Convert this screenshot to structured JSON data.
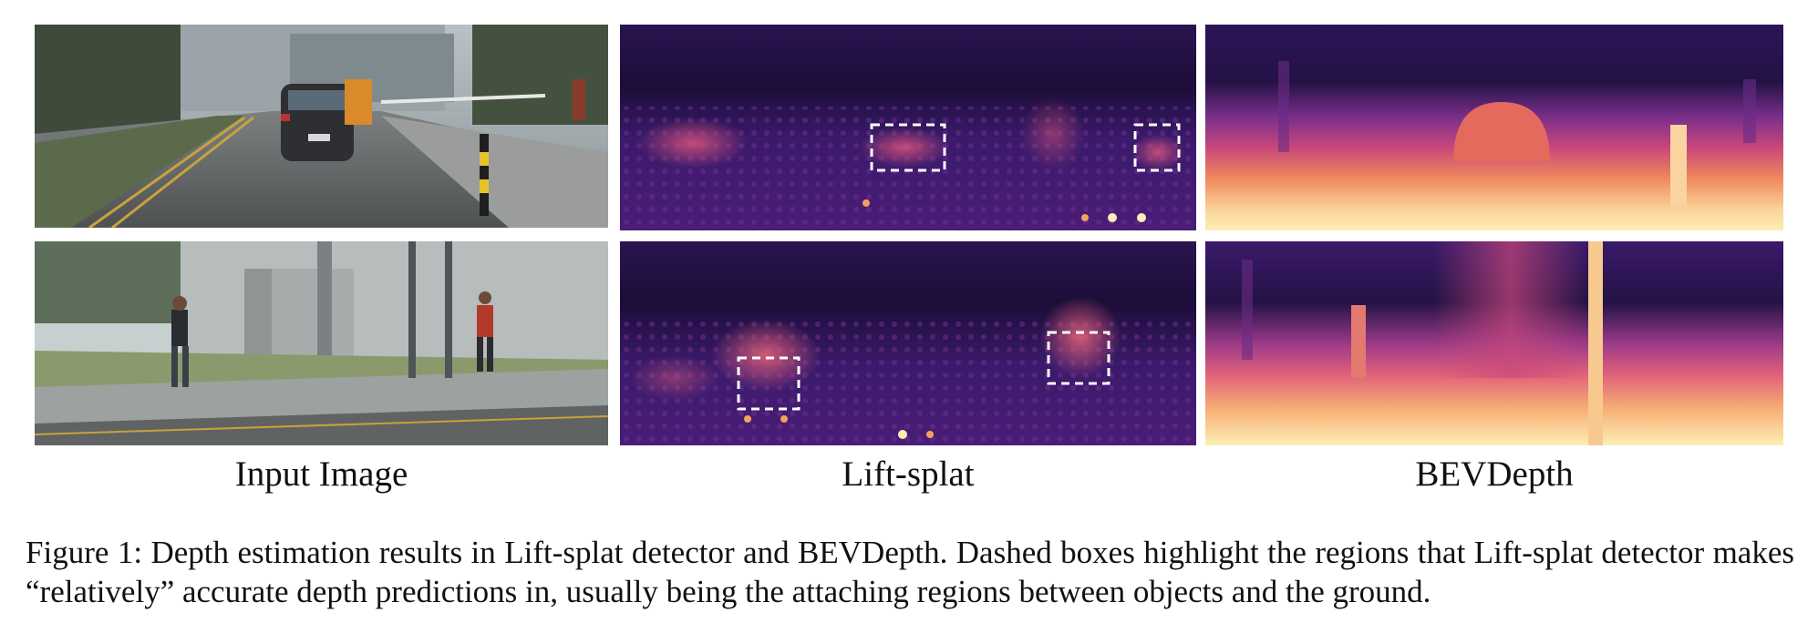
{
  "figure": {
    "column_labels": {
      "input": "Input Image",
      "liftsplat": "Lift-splat",
      "bevdepth": "BEVDepth"
    },
    "caption": "Figure 1: Depth estimation results in Lift-splat detector and BEVDepth. Dashed boxes highlight the regions that Lift-splat detector makes “relatively” accurate depth predictions in, usually being the attaching regions between objects and the ground."
  },
  "colors": {
    "heatmap_dark": "#241245",
    "heatmap_mid": "#c9487a",
    "heatmap_bright": "#fcefb4",
    "dashed_box": "#ffffff"
  }
}
